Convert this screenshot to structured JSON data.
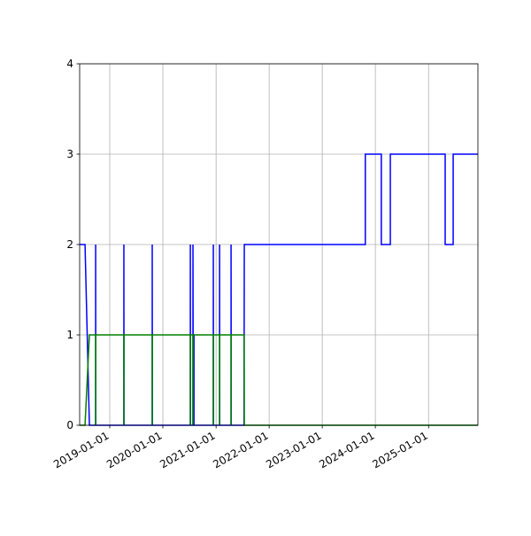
{
  "chart_data": {
    "type": "line",
    "title": "",
    "xlabel": "",
    "ylabel": "",
    "xlim": [
      "2018-06-08",
      "2025-12-06"
    ],
    "ylim": [
      0,
      4
    ],
    "grid": true,
    "yticks": [
      "0",
      "1",
      "2",
      "3",
      "4"
    ],
    "xticks": [
      "2019-01-01",
      "2020-01-01",
      "2021-01-01",
      "2022-01-01",
      "2023-01-01",
      "2024-01-01",
      "2025-01-01"
    ],
    "series": [
      {
        "color": "#0000ff",
        "points": [
          [
            "2018-06-08",
            2
          ],
          [
            "2018-07-15",
            2
          ],
          [
            "2018-08-14",
            0
          ],
          [
            "2018-09-26",
            0
          ],
          [
            "2018-09-26",
            2
          ],
          [
            "2018-09-27",
            0
          ],
          [
            "2019-04-08",
            0
          ],
          [
            "2019-04-08",
            2
          ],
          [
            "2019-04-09",
            0
          ],
          [
            "2019-10-20",
            0
          ],
          [
            "2019-10-20",
            2
          ],
          [
            "2019-10-21",
            0
          ],
          [
            "2020-07-08",
            0
          ],
          [
            "2020-07-08",
            2
          ],
          [
            "2020-07-09",
            0
          ],
          [
            "2020-07-26",
            0
          ],
          [
            "2020-07-26",
            2
          ],
          [
            "2020-07-27",
            1
          ],
          [
            "2020-08-02",
            1
          ],
          [
            "2020-08-02",
            0
          ],
          [
            "2020-12-13",
            0
          ],
          [
            "2020-12-13",
            2
          ],
          [
            "2020-12-14",
            0
          ],
          [
            "2021-01-25",
            0
          ],
          [
            "2021-01-25",
            2
          ],
          [
            "2021-01-26",
            0
          ],
          [
            "2021-04-14",
            0
          ],
          [
            "2021-04-14",
            2
          ],
          [
            "2021-04-15",
            0
          ],
          [
            "2021-07-12",
            0
          ],
          [
            "2021-07-14",
            2
          ],
          [
            "2023-10-24",
            2
          ],
          [
            "2023-10-24",
            3
          ],
          [
            "2024-02-11",
            3
          ],
          [
            "2024-02-11",
            2
          ],
          [
            "2024-04-13",
            2
          ],
          [
            "2024-04-13",
            3
          ],
          [
            "2025-04-25",
            3
          ],
          [
            "2025-04-25",
            2
          ],
          [
            "2025-06-19",
            2
          ],
          [
            "2025-06-19",
            3
          ],
          [
            "2025-12-06",
            3
          ]
        ]
      },
      {
        "color": "#008000",
        "points": [
          [
            "2018-06-08",
            0
          ],
          [
            "2018-07-15",
            0
          ],
          [
            "2018-08-14",
            1
          ],
          [
            "2018-09-26",
            1
          ],
          [
            "2018-09-26",
            0
          ],
          [
            "2018-09-27",
            1
          ],
          [
            "2019-04-08",
            1
          ],
          [
            "2019-04-08",
            0
          ],
          [
            "2019-04-09",
            1
          ],
          [
            "2019-10-20",
            1
          ],
          [
            "2019-10-20",
            0
          ],
          [
            "2019-10-21",
            1
          ],
          [
            "2020-07-08",
            1
          ],
          [
            "2020-07-08",
            0
          ],
          [
            "2020-07-09",
            1
          ],
          [
            "2020-07-26",
            1
          ],
          [
            "2020-07-26",
            0
          ],
          [
            "2020-07-27",
            1
          ],
          [
            "2020-12-13",
            1
          ],
          [
            "2020-12-13",
            0
          ],
          [
            "2020-12-14",
            1
          ],
          [
            "2021-01-25",
            1
          ],
          [
            "2021-01-25",
            0
          ],
          [
            "2021-01-26",
            1
          ],
          [
            "2021-04-14",
            1
          ],
          [
            "2021-04-14",
            0
          ],
          [
            "2021-04-15",
            1
          ],
          [
            "2021-07-13",
            1
          ],
          [
            "2021-07-14",
            0
          ],
          [
            "2025-12-06",
            0
          ]
        ]
      }
    ]
  }
}
